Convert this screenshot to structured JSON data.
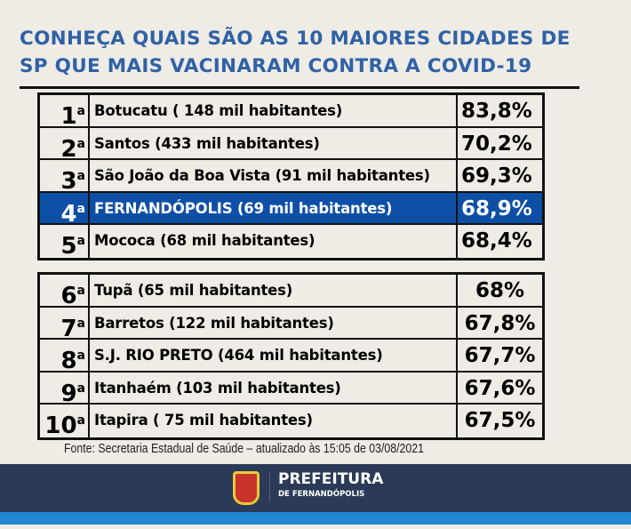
{
  "title": [
    "CONHEÇA QUAIS SÃO AS 10 MAIORES CIDADES DE",
    "SP QUE MAIS VACINARAM CONTRA A COVID-19"
  ],
  "ordinal": "a",
  "table1": [
    {
      "rank": "1",
      "city": "Botucatu ( 148 mil habitantes)",
      "pct": "83,8%"
    },
    {
      "rank": "2",
      "city": "Santos (433 mil habitantes)",
      "pct": "70,2%"
    },
    {
      "rank": "3",
      "city": "São João da Boa Vista (91 mil habitantes)",
      "pct": "69,3%"
    },
    {
      "rank": "4",
      "city": "FERNANDÓPOLIS (69 mil habitantes)",
      "pct": "68,9%"
    },
    {
      "rank": "5",
      "city": "Mococa  (68 mil habitantes)",
      "pct": "68,4%"
    }
  ],
  "table2": [
    {
      "rank": "6",
      "city": "Tupã  (65 mil habitantes)",
      "pct": "68%"
    },
    {
      "rank": "7",
      "city": "Barretos (122 mil habitantes)",
      "pct": "67,8%"
    },
    {
      "rank": "8",
      "city": "S.J. RIO PRETO (464 mil habitantes)",
      "pct": "67,7%"
    },
    {
      "rank": "9",
      "city": "Itanhaém (103 mil habitantes)",
      "pct": "67,6%"
    },
    {
      "rank": "10",
      "city": "Itapira ( 75 mil habitantes)",
      "pct": "67,5%"
    }
  ],
  "source": "Fonte: Secretaria Estadual de Saúde – atualizado às 15:05 de 03/08/2021",
  "footer": {
    "brand": "PREFEITURA",
    "sub": "DE FERNANDÓPOLIS"
  },
  "colors": {
    "title": "#2f62a6",
    "highlight": "#0e4fa6",
    "footer": "#2b3a57",
    "strip": "#1f86cf"
  }
}
